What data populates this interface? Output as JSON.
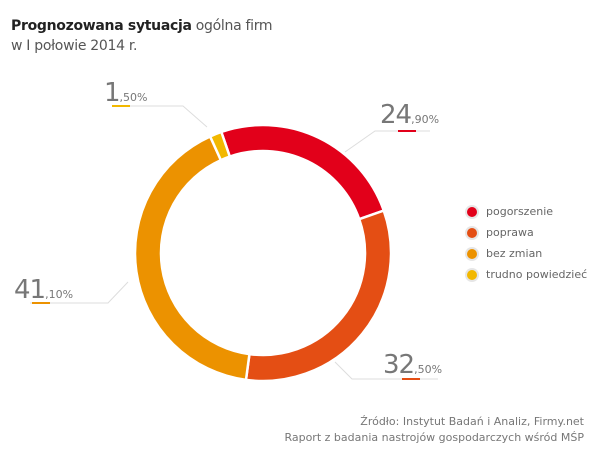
{
  "title": {
    "bold": "Prognozowana sytuacja",
    "rest": " ogólna firm",
    "line2": "w I połowie 2014 r."
  },
  "chart_data": {
    "type": "pie",
    "donut": true,
    "categories": [
      "pogorszenie",
      "poprawa",
      "bez zmian",
      "trudno powiedzieć"
    ],
    "values": [
      24.9,
      32.5,
      41.1,
      1.5
    ],
    "colors": [
      "#e2001a",
      "#e44e14",
      "#ec9200",
      "#f2b800"
    ],
    "labels": [
      {
        "int": "24",
        "dec": ",90%"
      },
      {
        "int": "32",
        "dec": ",50%"
      },
      {
        "int": "41",
        "dec": ",10%"
      },
      {
        "int": "1",
        "dec": ",50%"
      }
    ],
    "legend_position": "right"
  },
  "source": {
    "line1": "Źródło: Instytut Badań i Analiz, Firmy.net",
    "line2": "Raport z badania nastrojów gospodarczych wśród MŚP"
  }
}
